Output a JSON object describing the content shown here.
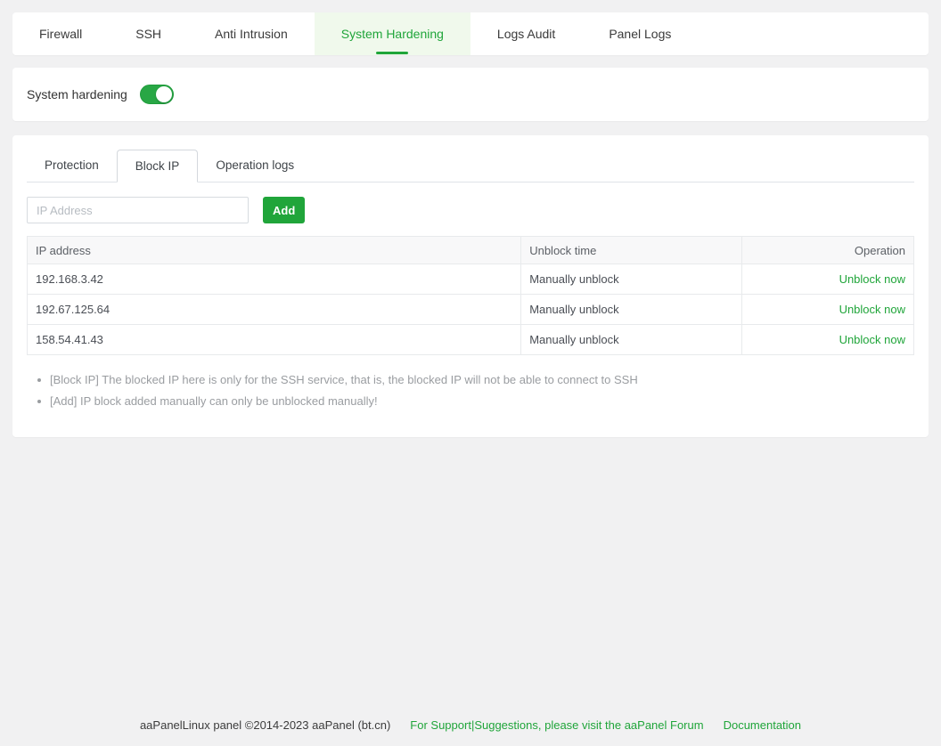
{
  "colors": {
    "accent_green": "#20a53a",
    "active_tab_bg": "#f0f9ec",
    "page_bg": "#f1f1f2",
    "table_header_bg": "#f8f8f9"
  },
  "top_tabs": {
    "items": [
      {
        "label": "Firewall",
        "active": false
      },
      {
        "label": "SSH",
        "active": false
      },
      {
        "label": "Anti Intrusion",
        "active": false
      },
      {
        "label": "System Hardening",
        "active": true
      },
      {
        "label": "Logs Audit",
        "active": false
      },
      {
        "label": "Panel Logs",
        "active": false
      }
    ]
  },
  "hardening": {
    "label": "System hardening",
    "enabled": true
  },
  "panel": {
    "sub_tabs": [
      {
        "label": "Protection",
        "active": false
      },
      {
        "label": "Block IP",
        "active": true
      },
      {
        "label": "Operation logs",
        "active": false
      }
    ],
    "form": {
      "ip_placeholder": "IP Address",
      "add_label": "Add"
    },
    "table": {
      "headers": {
        "ip": "IP address",
        "unblock_time": "Unblock time",
        "operation": "Operation"
      },
      "rows": [
        {
          "ip": "192.168.3.42",
          "unblock_time": "Manually unblock",
          "operation": "Unblock now"
        },
        {
          "ip": "192.67.125.64",
          "unblock_time": "Manually unblock",
          "operation": "Unblock now"
        },
        {
          "ip": "158.54.41.43",
          "unblock_time": "Manually unblock",
          "operation": "Unblock now"
        }
      ]
    },
    "notes": [
      "[Block IP] The blocked IP here is only for the SSH service, that is, the blocked IP will not be able to connect to SSH",
      "[Add] IP block added manually can only be unblocked manually!"
    ]
  },
  "footer": {
    "copyright": "aaPanelLinux panel ©2014-2023 aaPanel (bt.cn)",
    "support_link": "For Support|Suggestions, please visit the aaPanel Forum",
    "docs_link": "Documentation"
  }
}
